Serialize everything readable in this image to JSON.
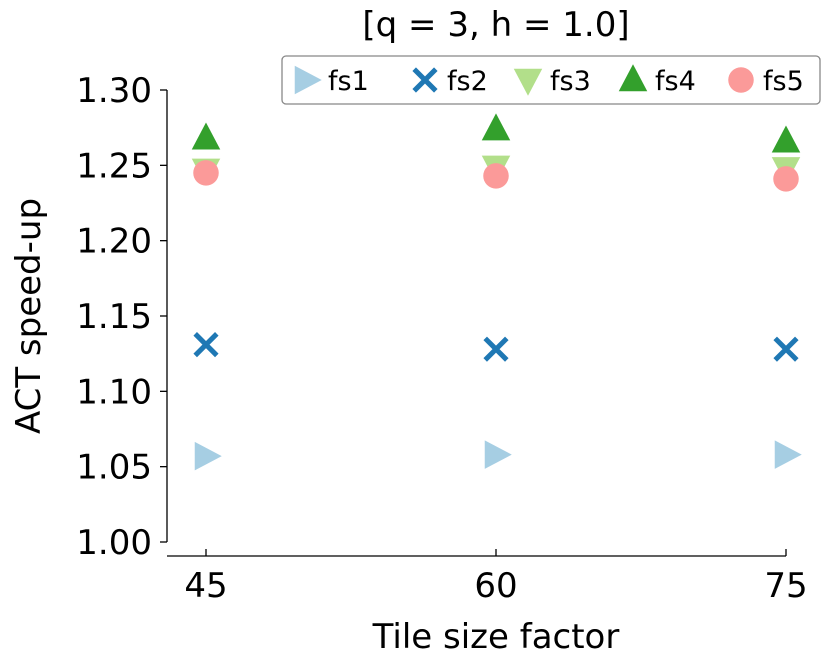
{
  "chart_data": {
    "type": "scatter",
    "title": "[q = 3, h = 1.0]",
    "xlabel": "Tile size factor",
    "ylabel": "ACT speed-up",
    "categories": [
      "45",
      "60",
      "75"
    ],
    "ylim": [
      1.0,
      1.3
    ],
    "yticks": [
      "1.00",
      "1.05",
      "1.10",
      "1.15",
      "1.20",
      "1.25",
      "1.30"
    ],
    "grid": false,
    "legend_position": "top",
    "series": [
      {
        "name": "fs1",
        "marker": "triangle-right",
        "color": "#a6cee3",
        "values": [
          1.057,
          1.058,
          1.058
        ]
      },
      {
        "name": "fs2",
        "marker": "x",
        "color": "#1f78b4",
        "values": [
          1.131,
          1.128,
          1.128
        ]
      },
      {
        "name": "fs3",
        "marker": "triangle-down",
        "color": "#b2df8a",
        "values": [
          1.247,
          1.249,
          1.248
        ]
      },
      {
        "name": "fs4",
        "marker": "triangle-up",
        "color": "#33a02c",
        "values": [
          1.268,
          1.274,
          1.266
        ]
      },
      {
        "name": "fs5",
        "marker": "circle",
        "color": "#fb9a99",
        "values": [
          1.245,
          1.243,
          1.241
        ]
      }
    ]
  }
}
